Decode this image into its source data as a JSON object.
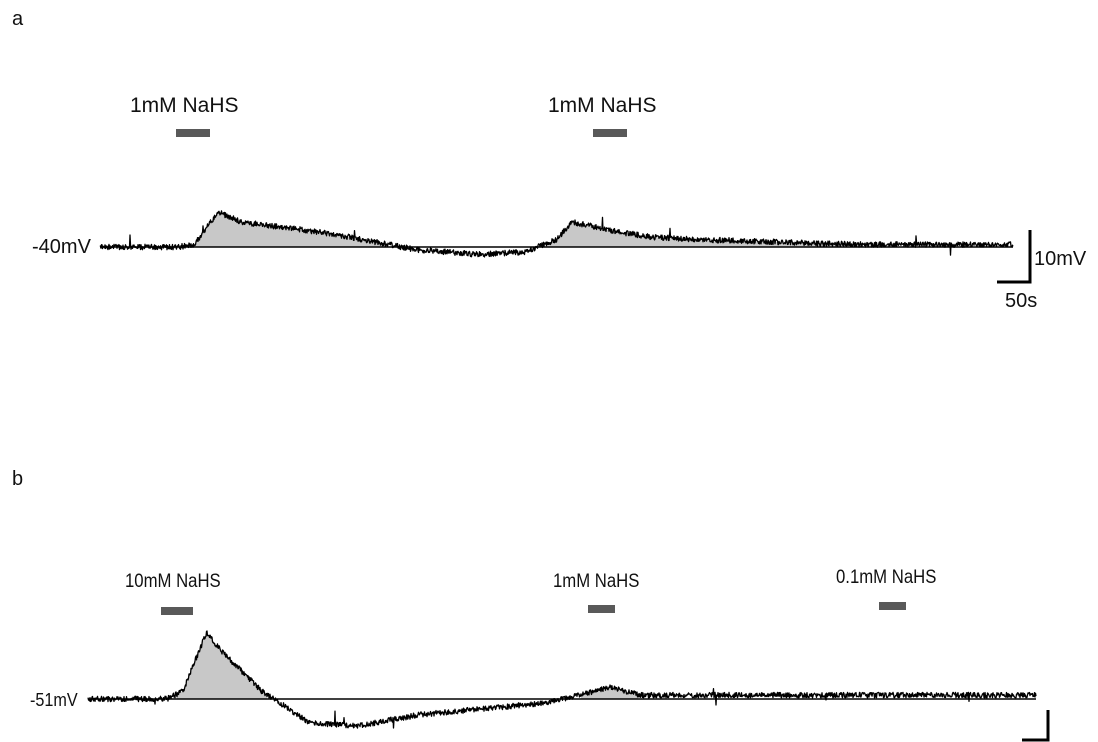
{
  "chart_data": [
    {
      "type": "line",
      "panel": "a",
      "baseline_label": "-40mV",
      "application_labels": [
        "1mM NaHS",
        "1mM NaHS"
      ],
      "scale_bar": {
        "voltage_label": "10mV",
        "time_label": "50s"
      },
      "series": [
        {
          "x": [
            0,
            50,
            60,
            75,
            90,
            115,
            150,
            200,
            240,
            270,
            290,
            300,
            315,
            330,
            350,
            380,
            430,
            480,
            530,
            580
          ],
          "values": [
            0,
            0,
            0.5,
            7,
            5,
            4,
            2.5,
            -0.5,
            -1.5,
            -1,
            1.5,
            5,
            4,
            3,
            2,
            1.5,
            1,
            0.5,
            0.5,
            0.5
          ]
        }
      ]
    },
    {
      "type": "line",
      "panel": "b",
      "baseline_label": "-51mV",
      "application_labels": [
        "10mM NaHS",
        "1mM NaHS",
        "0.1mM NaHS"
      ],
      "scale_bar": {
        "voltage_label": "",
        "time_label": ""
      },
      "series": [
        {
          "x": [
            0,
            50,
            60,
            75,
            85,
            110,
            140,
            170,
            210,
            290,
            330,
            350,
            380,
            430,
            500,
            600
          ],
          "values": [
            0,
            0,
            1,
            8.5,
            6,
            1,
            -3,
            -3.5,
            -2,
            -0.5,
            1.5,
            0.5,
            0.5,
            0.5,
            0.5,
            0.5
          ]
        }
      ]
    }
  ],
  "colors": {
    "trace": "#000000",
    "fill": "#c8c8c8",
    "bar": "#595959"
  }
}
